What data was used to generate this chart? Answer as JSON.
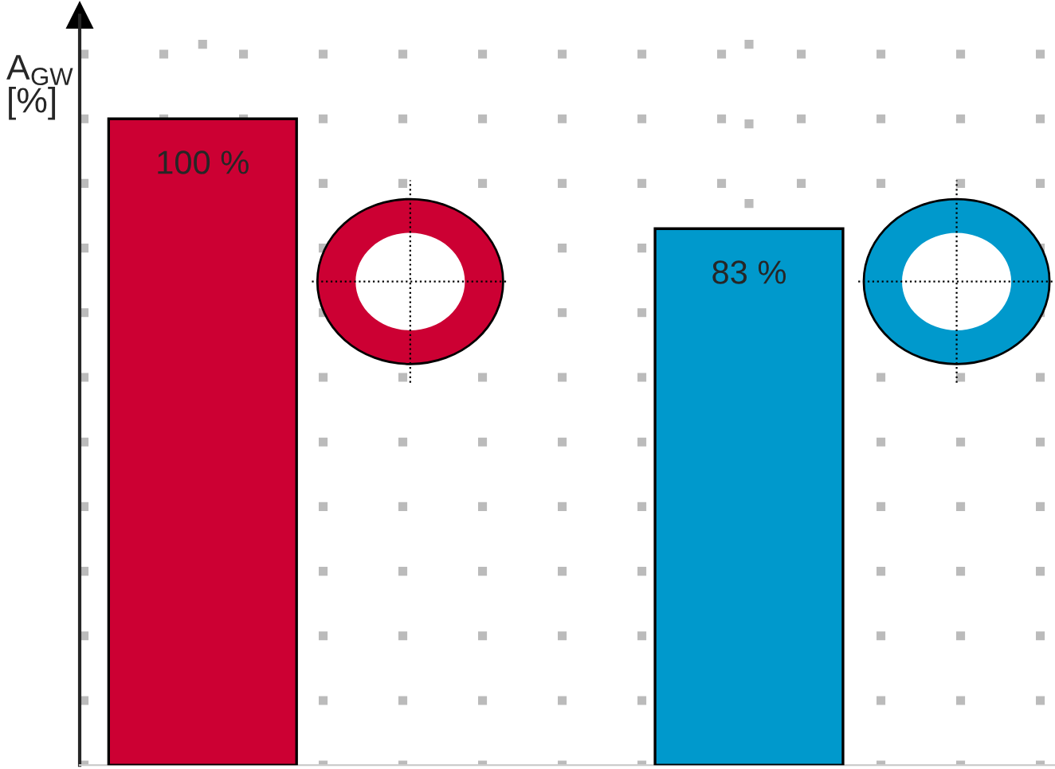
{
  "chart_data": {
    "type": "bar",
    "ylabel": "A$_{GW}$\n[%]",
    "categories": [
      null,
      null
    ],
    "values": [
      100,
      83
    ],
    "value_labels": [
      "100 %",
      "83 %"
    ],
    "colors": [
      "#cc0033",
      "#0099cc"
    ],
    "grid": true,
    "tick_labels": false
  }
}
